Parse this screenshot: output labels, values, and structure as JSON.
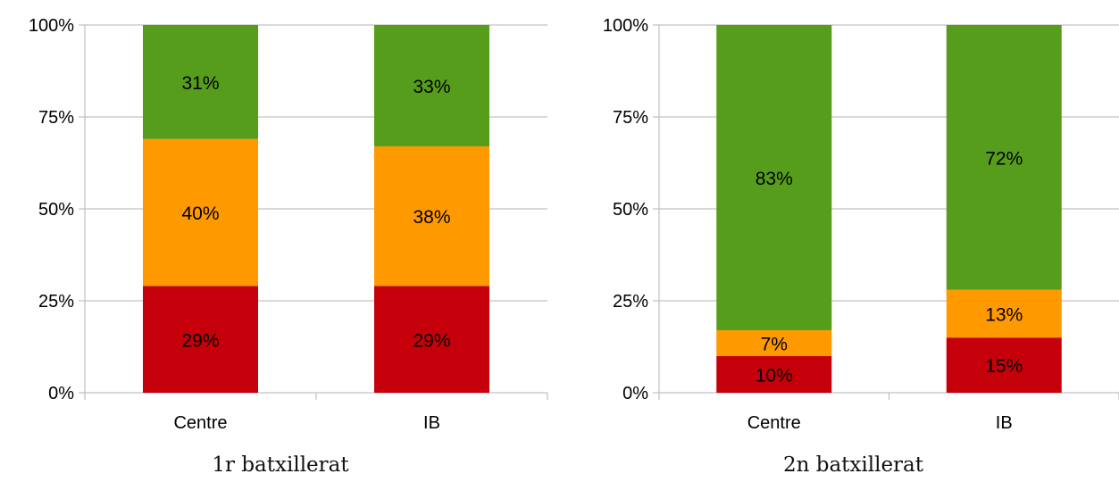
{
  "colors": {
    "red": "#c5000b",
    "orange": "#ff9900",
    "green": "#579d1c",
    "grid": "#b3b3b3",
    "axis": "#b3b3b3"
  },
  "chart_data": [
    {
      "type": "bar",
      "stacked": true,
      "title": "1r batxillerat",
      "categories": [
        "Centre",
        "IB"
      ],
      "series": [
        {
          "color": "red",
          "values": [
            29,
            29
          ],
          "labels": [
            "29%",
            "29%"
          ]
        },
        {
          "color": "orange",
          "values": [
            40,
            38
          ],
          "labels": [
            "40%",
            "38%"
          ]
        },
        {
          "color": "green",
          "values": [
            31,
            33
          ],
          "labels": [
            "31%",
            "33%"
          ]
        }
      ],
      "ylim": [
        0,
        100
      ],
      "yticks": [
        "0%",
        "25%",
        "50%",
        "75%",
        "100%"
      ],
      "grid": true,
      "legend": "none"
    },
    {
      "type": "bar",
      "stacked": true,
      "title": "2n batxillerat",
      "categories": [
        "Centre",
        "IB"
      ],
      "series": [
        {
          "color": "red",
          "values": [
            10,
            15
          ],
          "labels": [
            "10%",
            "15%"
          ]
        },
        {
          "color": "orange",
          "values": [
            7,
            13
          ],
          "labels": [
            "7%",
            "13%"
          ]
        },
        {
          "color": "green",
          "values": [
            83,
            72
          ],
          "labels": [
            "83%",
            "72%"
          ]
        }
      ],
      "ylim": [
        0,
        100
      ],
      "yticks": [
        "0%",
        "25%",
        "50%",
        "75%",
        "100%"
      ],
      "grid": true,
      "legend": "none"
    }
  ]
}
